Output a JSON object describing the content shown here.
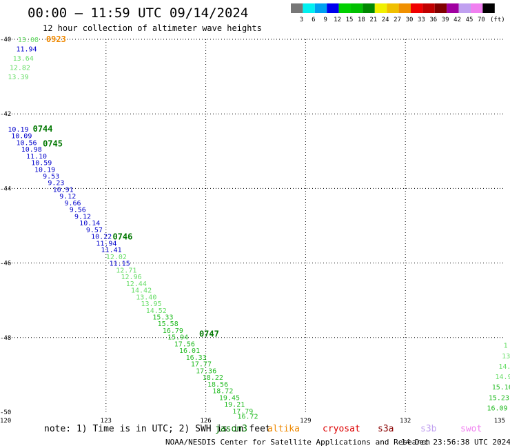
{
  "title": "00:00 – 11:59 UTC 09/14/2024",
  "subtitle": "12 hour collection of altimeter wave heights",
  "legend": {
    "unit": "(ft)",
    "bins": [
      {
        "label": "3",
        "color": "#777777"
      },
      {
        "label": "6",
        "color": "#00f0f0"
      },
      {
        "label": "9",
        "color": "#00a0f0"
      },
      {
        "label": "12",
        "color": "#0000ee"
      },
      {
        "label": "15",
        "color": "#00d000"
      },
      {
        "label": "18",
        "color": "#00c000"
      },
      {
        "label": "21",
        "color": "#008800"
      },
      {
        "label": "24",
        "color": "#f0f000"
      },
      {
        "label": "27",
        "color": "#f0c000"
      },
      {
        "label": "30",
        "color": "#f09000"
      },
      {
        "label": "33",
        "color": "#f00000"
      },
      {
        "label": "36",
        "color": "#c00000"
      },
      {
        "label": "39",
        "color": "#800000"
      },
      {
        "label": "42",
        "color": "#a000a0"
      },
      {
        "label": "45",
        "color": "#c0a0f0"
      },
      {
        "label": "70",
        "color": "#f080f0"
      },
      {
        "label": "",
        "color": "#000000"
      }
    ]
  },
  "map": {
    "lon_ticks": [
      "120",
      "123",
      "126",
      "129",
      "132",
      "135"
    ],
    "lat_ticks": [
      "-40",
      "-42",
      "-44",
      "-46",
      "-48",
      "-50"
    ],
    "lon_range": [
      120,
      135
    ],
    "lat_range": [
      -50,
      -40
    ]
  },
  "colors": {
    "blue": "#0000cc",
    "lightgreen": "#66dd66",
    "green": "#22bb22",
    "darkgreen": "#007700",
    "orange": "#ee8800"
  },
  "time_labels": [
    {
      "text": "0923",
      "lat": -40.0,
      "lon": 121.2,
      "color": "orange"
    },
    {
      "text": "0744",
      "lat": -42.4,
      "lon": 120.8,
      "color": "darkgreen"
    },
    {
      "text": "0745",
      "lat": -42.8,
      "lon": 121.1,
      "color": "darkgreen"
    },
    {
      "text": "0746",
      "lat": -45.3,
      "lon": 123.2,
      "color": "darkgreen"
    },
    {
      "text": "0747",
      "lat": -47.9,
      "lon": 125.8,
      "color": "darkgreen"
    }
  ],
  "observations": [
    {
      "text": "13.08",
      "lat": -40.0,
      "lon": 120.35,
      "color": "lightgreen"
    },
    {
      "text": "11.94",
      "lat": -40.25,
      "lon": 120.3,
      "color": "blue"
    },
    {
      "text": "13.64",
      "lat": -40.5,
      "lon": 120.2,
      "color": "lightgreen"
    },
    {
      "text": "12.82",
      "lat": -40.75,
      "lon": 120.1,
      "color": "lightgreen"
    },
    {
      "text": "13.39",
      "lat": -41.0,
      "lon": 120.05,
      "color": "lightgreen"
    },
    {
      "text": "10.19",
      "lat": -42.4,
      "lon": 120.05,
      "color": "blue"
    },
    {
      "text": "10.09",
      "lat": -42.58,
      "lon": 120.15,
      "color": "blue"
    },
    {
      "text": "10.56",
      "lat": -42.76,
      "lon": 120.3,
      "color": "blue"
    },
    {
      "text": "10.98",
      "lat": -42.94,
      "lon": 120.45,
      "color": "blue"
    },
    {
      "text": "11.10",
      "lat": -43.12,
      "lon": 120.6,
      "color": "blue"
    },
    {
      "text": "10.59",
      "lat": -43.3,
      "lon": 120.75,
      "color": "blue"
    },
    {
      "text": "10.19",
      "lat": -43.48,
      "lon": 120.85,
      "color": "blue"
    },
    {
      "text": "9.53",
      "lat": -43.66,
      "lon": 121.1,
      "color": "blue"
    },
    {
      "text": "9.23",
      "lat": -43.84,
      "lon": 121.25,
      "color": "blue"
    },
    {
      "text": "10.91",
      "lat": -44.02,
      "lon": 121.4,
      "color": "blue"
    },
    {
      "text": "9.12",
      "lat": -44.2,
      "lon": 121.6,
      "color": "blue"
    },
    {
      "text": "9.66",
      "lat": -44.38,
      "lon": 121.75,
      "color": "blue"
    },
    {
      "text": "9.56",
      "lat": -44.56,
      "lon": 121.9,
      "color": "blue"
    },
    {
      "text": "9.12",
      "lat": -44.74,
      "lon": 122.05,
      "color": "blue"
    },
    {
      "text": "10.14",
      "lat": -44.92,
      "lon": 122.2,
      "color": "blue"
    },
    {
      "text": "9.57",
      "lat": -45.1,
      "lon": 122.4,
      "color": "blue"
    },
    {
      "text": "10.22",
      "lat": -45.28,
      "lon": 122.55,
      "color": "blue"
    },
    {
      "text": "11.94",
      "lat": -45.46,
      "lon": 122.7,
      "color": "blue"
    },
    {
      "text": "11.41",
      "lat": -45.64,
      "lon": 122.85,
      "color": "blue"
    },
    {
      "text": "12.02",
      "lat": -45.82,
      "lon": 123.0,
      "color": "lightgreen"
    },
    {
      "text": "11.15",
      "lat": -46.0,
      "lon": 123.1,
      "color": "blue"
    },
    {
      "text": "12.71",
      "lat": -46.18,
      "lon": 123.3,
      "color": "lightgreen"
    },
    {
      "text": "12.96",
      "lat": -46.36,
      "lon": 123.45,
      "color": "lightgreen"
    },
    {
      "text": "12.44",
      "lat": -46.54,
      "lon": 123.6,
      "color": "lightgreen"
    },
    {
      "text": "14.42",
      "lat": -46.72,
      "lon": 123.75,
      "color": "lightgreen"
    },
    {
      "text": "13.40",
      "lat": -46.9,
      "lon": 123.9,
      "color": "lightgreen"
    },
    {
      "text": "13.95",
      "lat": -47.08,
      "lon": 124.05,
      "color": "lightgreen"
    },
    {
      "text": "14.52",
      "lat": -47.26,
      "lon": 124.2,
      "color": "lightgreen"
    },
    {
      "text": "15.33",
      "lat": -47.44,
      "lon": 124.4,
      "color": "green"
    },
    {
      "text": "15.58",
      "lat": -47.62,
      "lon": 124.55,
      "color": "green"
    },
    {
      "text": "16.79",
      "lat": -47.8,
      "lon": 124.7,
      "color": "green"
    },
    {
      "text": "15.94",
      "lat": -47.98,
      "lon": 124.85,
      "color": "green"
    },
    {
      "text": "17.56",
      "lat": -48.16,
      "lon": 125.05,
      "color": "green"
    },
    {
      "text": "16.01",
      "lat": -48.34,
      "lon": 125.2,
      "color": "green"
    },
    {
      "text": "16.33",
      "lat": -48.52,
      "lon": 125.4,
      "color": "green"
    },
    {
      "text": "17.77",
      "lat": -48.7,
      "lon": 125.55,
      "color": "green"
    },
    {
      "text": "17.36",
      "lat": -48.88,
      "lon": 125.7,
      "color": "green"
    },
    {
      "text": "18.22",
      "lat": -49.06,
      "lon": 125.9,
      "color": "green"
    },
    {
      "text": "18.56",
      "lat": -49.24,
      "lon": 126.05,
      "color": "green"
    },
    {
      "text": "18.72",
      "lat": -49.42,
      "lon": 126.2,
      "color": "green"
    },
    {
      "text": "19.45",
      "lat": -49.6,
      "lon": 126.4,
      "color": "green"
    },
    {
      "text": "19.21",
      "lat": -49.78,
      "lon": 126.55,
      "color": "green"
    },
    {
      "text": "17.79",
      "lat": -49.96,
      "lon": 126.8,
      "color": "green"
    },
    {
      "text": "16.72",
      "lat": -50.1,
      "lon": 126.95,
      "color": "green"
    },
    {
      "text": "1",
      "lat": -48.2,
      "lon": 134.95,
      "color": "lightgreen"
    },
    {
      "text": "13",
      "lat": -48.48,
      "lon": 134.9,
      "color": "lightgreen"
    },
    {
      "text": "14.",
      "lat": -48.76,
      "lon": 134.8,
      "color": "lightgreen"
    },
    {
      "text": "14.9",
      "lat": -49.04,
      "lon": 134.7,
      "color": "lightgreen"
    },
    {
      "text": "15.16",
      "lat": -49.32,
      "lon": 134.6,
      "color": "green"
    },
    {
      "text": "15.23",
      "lat": -49.6,
      "lon": 134.5,
      "color": "green"
    },
    {
      "text": "16.09",
      "lat": -49.88,
      "lon": 134.45,
      "color": "green"
    }
  ],
  "note": "note: 1) Time is in UTC; 2) SWH is in feet",
  "missions": [
    {
      "label": "jason3",
      "color": "#007700"
    },
    {
      "label": "altika",
      "color": "#ee8800"
    },
    {
      "label": "cryosat",
      "color": "#dd0000"
    },
    {
      "label": "s3a",
      "color": "#880000"
    },
    {
      "label": "s3b",
      "color": "#c0a0f0"
    },
    {
      "label": "swot",
      "color": "#f080f0"
    }
  ],
  "footer": {
    "credit": "NOAA/NESDIS Center for Satellite Applications and Research",
    "generated": "14 Dec 23:56:38 UTC 2024"
  }
}
